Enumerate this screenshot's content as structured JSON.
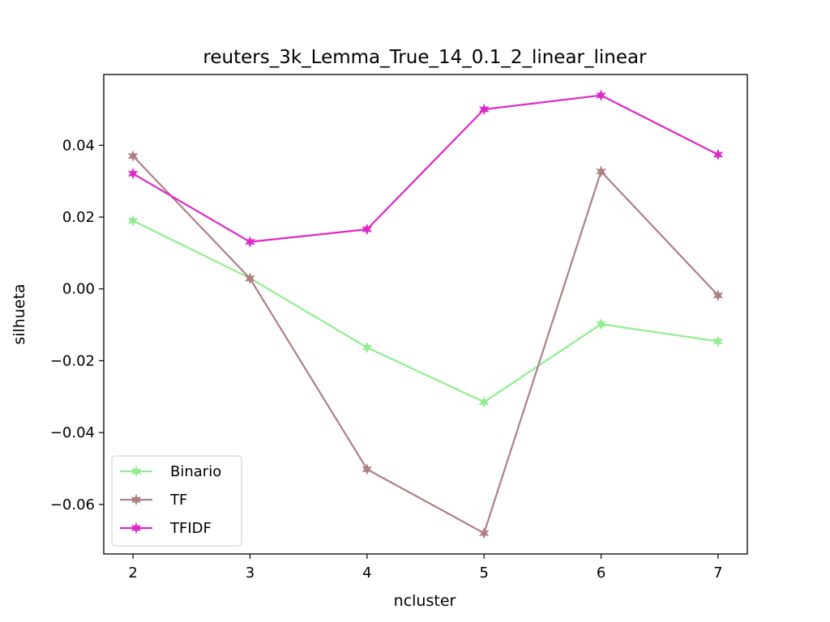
{
  "chart_data": {
    "type": "line",
    "title": "reuters_3k_Lemma_True_14_0.1_2_linear_linear",
    "xlabel": "ncluster",
    "ylabel": "silhueta",
    "x": [
      2,
      3,
      4,
      5,
      6,
      7
    ],
    "xlim": [
      1.75,
      7.25
    ],
    "ylim": [
      -0.0738,
      0.0597
    ],
    "xticks": [
      "2",
      "3",
      "4",
      "5",
      "6",
      "7"
    ],
    "yticks": [
      {
        "value": -0.06,
        "label": "−0.06"
      },
      {
        "value": -0.04,
        "label": "−0.04"
      },
      {
        "value": -0.02,
        "label": "−0.02"
      },
      {
        "value": 0.0,
        "label": "0.00"
      },
      {
        "value": 0.02,
        "label": "0.02"
      },
      {
        "value": 0.04,
        "label": "0.04"
      }
    ],
    "grid": false,
    "legend_position": "lower-left",
    "marker": "star",
    "series": [
      {
        "name": "Binario",
        "color": "#90ee90",
        "values": [
          0.019,
          0.003,
          -0.0163,
          -0.0315,
          -0.0098,
          -0.0146
        ]
      },
      {
        "name": "TF",
        "color": "#ad8084",
        "values": [
          0.037,
          0.0029,
          -0.0502,
          -0.068,
          0.0327,
          -0.0018
        ]
      },
      {
        "name": "TFIDF",
        "color": "#dd2ac5",
        "values": [
          0.0321,
          0.0131,
          0.0166,
          0.05,
          0.0539,
          0.0374
        ]
      }
    ]
  }
}
